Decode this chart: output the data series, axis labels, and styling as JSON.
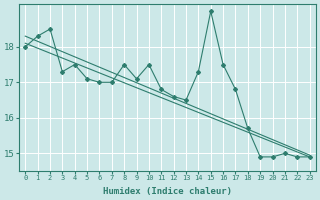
{
  "xlabel": "Humidex (Indice chaleur)",
  "bg_color": "#cce8e8",
  "grid_color": "#ffffff",
  "line_color": "#2e7d6e",
  "xlim": [
    -0.5,
    23.5
  ],
  "ylim": [
    14.5,
    19.2
  ],
  "xticks": [
    0,
    1,
    2,
    3,
    4,
    5,
    6,
    7,
    8,
    9,
    10,
    11,
    12,
    13,
    14,
    15,
    16,
    17,
    18,
    19,
    20,
    21,
    22,
    23
  ],
  "yticks": [
    15,
    16,
    17,
    18
  ],
  "data_line": [
    18.0,
    18.3,
    18.5,
    17.3,
    17.5,
    17.1,
    17.0,
    17.0,
    17.5,
    17.1,
    17.5,
    16.8,
    16.6,
    16.5,
    17.3,
    19.0,
    17.5,
    16.8,
    15.7,
    14.9,
    14.9,
    15.0,
    14.9,
    14.9
  ],
  "trend1_x": [
    0,
    23
  ],
  "trend1_y": [
    18.1,
    14.9
  ],
  "trend2_x": [
    0,
    23
  ],
  "trend2_y": [
    18.3,
    14.95
  ],
  "figsize": [
    3.2,
    2.0
  ],
  "dpi": 100
}
